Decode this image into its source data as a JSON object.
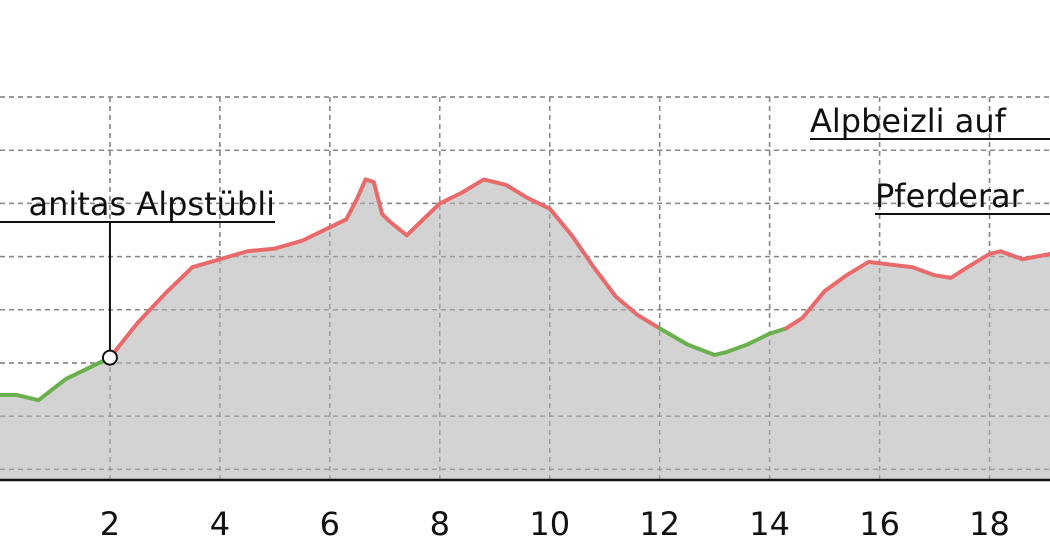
{
  "chart_data": {
    "type": "area",
    "title": "",
    "xlabel": "",
    "ylabel": "",
    "xlim": [
      0,
      19.1
    ],
    "ylim": [
      0,
      7.2
    ],
    "grid": true,
    "x_ticks": [
      2,
      4,
      6,
      8,
      10,
      12,
      14,
      16,
      18
    ],
    "x_tick_labels": [
      "2",
      "4",
      "6",
      "8",
      "10",
      "12",
      "14",
      "16",
      "18"
    ],
    "y_gridlines": [
      0.2,
      1.2,
      2.2,
      3.2,
      4.2,
      5.2,
      6.2,
      7.2
    ],
    "colors": {
      "fill": "#d3d3d3",
      "ascent": "#e86a6a",
      "descent": "#6ab04c",
      "grid": "#888888",
      "axis": "#111111"
    },
    "profile": {
      "x": [
        0,
        0.3,
        0.7,
        1.2,
        1.6,
        2.0,
        2.5,
        3.0,
        3.5,
        4.0,
        4.5,
        5.0,
        5.5,
        6.0,
        6.3,
        6.5,
        6.65,
        6.8,
        6.95,
        7.1,
        7.4,
        7.7,
        8.0,
        8.4,
        8.8,
        9.2,
        9.6,
        10.0,
        10.4,
        10.8,
        11.2,
        11.6,
        12.0,
        12.5,
        13.0,
        13.2,
        13.6,
        14.0,
        14.3,
        14.6,
        15.0,
        15.4,
        15.8,
        16.2,
        16.6,
        17.0,
        17.3,
        17.6,
        18.0,
        18.2,
        18.6,
        19.1
      ],
      "y": [
        1.6,
        1.6,
        1.5,
        1.9,
        2.1,
        2.3,
        2.95,
        3.5,
        4.0,
        4.15,
        4.3,
        4.35,
        4.5,
        4.75,
        4.9,
        5.3,
        5.65,
        5.6,
        5.0,
        4.85,
        4.6,
        4.9,
        5.2,
        5.4,
        5.65,
        5.55,
        5.3,
        5.1,
        4.6,
        4.0,
        3.45,
        3.1,
        2.85,
        2.55,
        2.35,
        2.4,
        2.55,
        2.75,
        2.85,
        3.05,
        3.55,
        3.85,
        4.1,
        4.05,
        4.0,
        3.85,
        3.8,
        4.0,
        4.25,
        4.3,
        4.15,
        4.25
      ],
      "segments": [
        {
          "from": 0,
          "to": 2.0,
          "trend": "descent"
        },
        {
          "from": 2.0,
          "to": 12.0,
          "trend": "ascent"
        },
        {
          "from": 12.0,
          "to": 14.3,
          "trend": "descent"
        },
        {
          "from": 14.3,
          "to": 19.1,
          "trend": "ascent"
        }
      ]
    },
    "annotations": [
      {
        "label": "anitas Alpstübli",
        "x": 2.0,
        "marker": true
      },
      {
        "label": "Alpbeizli auf",
        "x": 19.1,
        "marker": false
      },
      {
        "label": "Pferderar",
        "x": 19.1,
        "marker": false
      }
    ]
  }
}
